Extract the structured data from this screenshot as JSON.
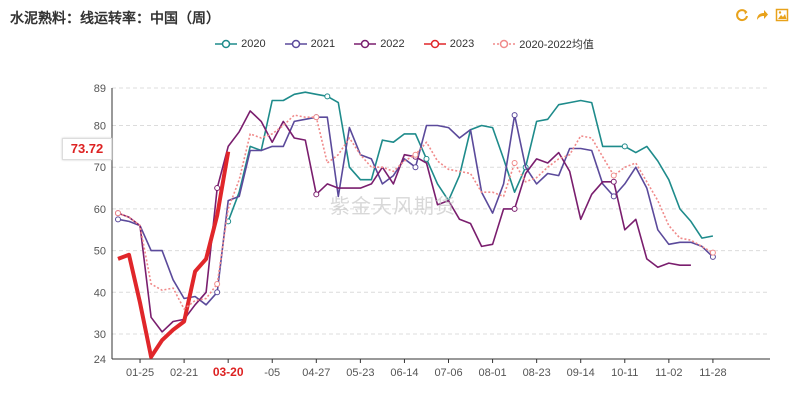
{
  "header": {
    "title": "水泥熟料：线运转率：中国（周）",
    "tools": [
      "refresh-icon",
      "share-icon",
      "save-image-icon"
    ]
  },
  "colors": {
    "2020": "#1e8b8b",
    "2021": "#5b4a9b",
    "2022": "#7a1e6e",
    "2023": "#e0262a",
    "avg": "#f08a8a"
  },
  "watermark": "紫金天风期货",
  "current_value_badge": "73.72",
  "chart_data": {
    "type": "line",
    "title": "水泥熟料：线运转率：中国（周）",
    "ylim": [
      24,
      89
    ],
    "yticks": [
      24,
      30,
      40,
      50,
      60,
      70,
      80,
      89
    ],
    "xlabels": [
      "01-25",
      "02-21",
      "03-20",
      "-05",
      "04-27",
      "05-23",
      "06-14",
      "07-06",
      "08-01",
      "08-23",
      "09-14",
      "10-11",
      "11-02",
      "11-28"
    ],
    "xlabel_week_index": [
      2,
      6,
      10,
      14,
      18,
      22,
      26,
      30,
      34,
      38,
      42,
      46,
      50,
      54
    ],
    "highlight_label": "03-20",
    "weeks": 60,
    "series": [
      {
        "name": "2020",
        "key": "2020",
        "dashed": false,
        "start": 10,
        "values": [
          57,
          64,
          75,
          74,
          86,
          86,
          87.5,
          88,
          87.5,
          87,
          85.5,
          70,
          67,
          67,
          76.5,
          76,
          78,
          78,
          72,
          66,
          62,
          68,
          79,
          80,
          79.5,
          72,
          64,
          70,
          81,
          81.5,
          85,
          85.5,
          86,
          85.5,
          75,
          75,
          75,
          73.5,
          75,
          71.5,
          67,
          60,
          57,
          53,
          53.5
        ]
      },
      {
        "name": "2021",
        "key": "2021",
        "dashed": false,
        "start": 0,
        "values": [
          57.5,
          57,
          56,
          50,
          50,
          43,
          38.5,
          39,
          37,
          40,
          62,
          63,
          74,
          74,
          75,
          75,
          81,
          81.5,
          82,
          82,
          63,
          79.5,
          73,
          72,
          66,
          68,
          72,
          70,
          80,
          80,
          79.5,
          77,
          79,
          64,
          59,
          66,
          82.5,
          70,
          66,
          68.5,
          68,
          74.5,
          74.5,
          74,
          66,
          63,
          66,
          70,
          65,
          55,
          51.5,
          52,
          52,
          51,
          48.5
        ]
      },
      {
        "name": "2022",
        "key": "2022",
        "dashed": false,
        "start": 0,
        "values": [
          59,
          58,
          56,
          34,
          30.5,
          33,
          33.5,
          37,
          40,
          65,
          75,
          78.5,
          83.5,
          81,
          76,
          81,
          77,
          76.5,
          63.5,
          66,
          65,
          65,
          65,
          66,
          70,
          66,
          73,
          72.5,
          71,
          61,
          62,
          57.5,
          56.5,
          51,
          51.5,
          60,
          60,
          68.5,
          72,
          71,
          73.5,
          69,
          57.5,
          63.5,
          66.5,
          66.5,
          55,
          57.5,
          48,
          46,
          47,
          46.5,
          46.5
        ]
      },
      {
        "name": "2023",
        "key": "2023",
        "dashed": false,
        "bold": true,
        "start": 0,
        "values": [
          48,
          49,
          37.5,
          24.5,
          28.5,
          31,
          33,
          45,
          48,
          58.5,
          73.72
        ]
      },
      {
        "name": "2020-2022均值",
        "key": "avg",
        "dashed": true,
        "start": 0,
        "values": [
          59,
          58,
          56,
          42,
          40.5,
          41,
          36,
          38,
          38.5,
          42,
          60,
          67,
          78,
          77,
          78,
          80,
          82.5,
          82,
          82,
          71,
          73,
          77,
          73,
          70,
          70,
          69,
          71.5,
          73,
          76,
          71.5,
          69.5,
          69,
          68.5,
          64,
          64,
          63,
          71,
          66.5,
          67.5,
          70,
          72,
          73,
          77.5,
          77,
          72.5,
          68,
          70,
          71,
          66.5,
          62,
          56,
          53,
          52.5,
          51,
          49.5
        ]
      }
    ]
  }
}
